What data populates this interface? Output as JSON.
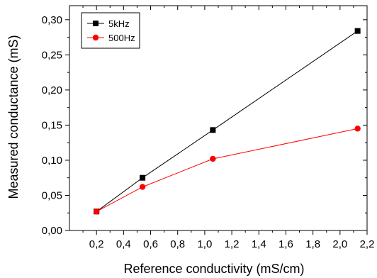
{
  "chart_data": {
    "type": "line",
    "xlabel": "Reference conductivity (mS/cm)",
    "ylabel": "Measured conductance (mS)",
    "xlim": [
      0.0,
      2.2
    ],
    "ylim": [
      0.0,
      0.32
    ],
    "x_ticks": [
      "0,2",
      "0,4",
      "0,6",
      "0,8",
      "1,0",
      "1,2",
      "1,4",
      "1,6",
      "1,8",
      "2,0",
      "2,2"
    ],
    "x_tick_values": [
      0.2,
      0.4,
      0.6,
      0.8,
      1.0,
      1.2,
      1.4,
      1.6,
      1.8,
      2.0,
      2.2
    ],
    "y_ticks": [
      "0,00",
      "0,05",
      "0,10",
      "0,15",
      "0,20",
      "0,25",
      "0,30"
    ],
    "y_tick_values": [
      0.0,
      0.05,
      0.1,
      0.15,
      0.2,
      0.25,
      0.3
    ],
    "grid": false,
    "legend_position": "top-left",
    "series": [
      {
        "name": "5kHz",
        "color": "#000000",
        "marker": "square",
        "x": [
          0.2,
          0.54,
          1.06,
          2.13
        ],
        "y": [
          0.027,
          0.075,
          0.143,
          0.284
        ]
      },
      {
        "name": "500Hz",
        "color": "#ff0000",
        "marker": "circle",
        "x": [
          0.2,
          0.54,
          1.06,
          2.13
        ],
        "y": [
          0.027,
          0.062,
          0.102,
          0.145
        ]
      }
    ]
  }
}
